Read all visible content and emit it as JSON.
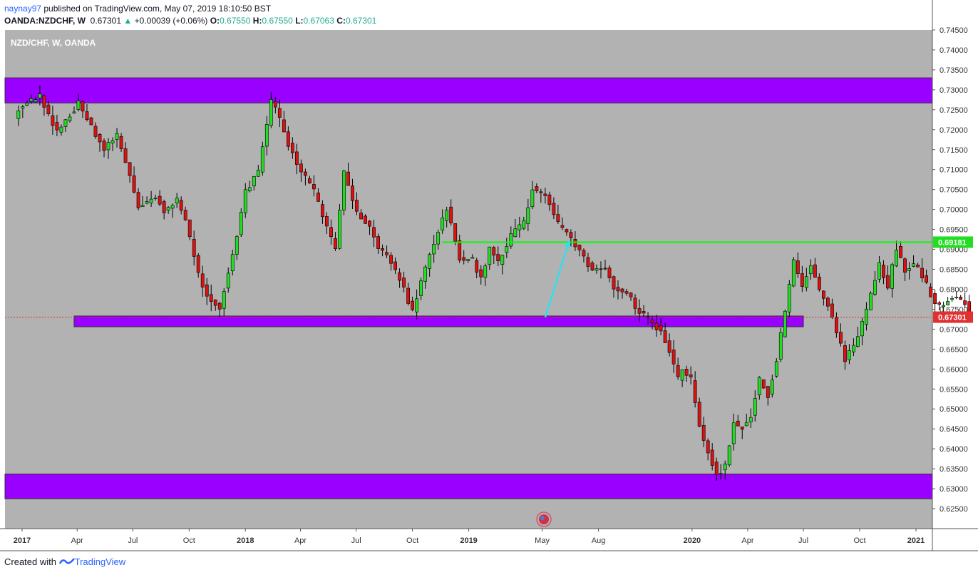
{
  "header": {
    "user": "naynay97",
    "published": " published on TradingView.com, May 07, 2019 18:10:50 BST",
    "symbol": "OANDA:NZDCHF, W",
    "last": "0.67301",
    "change_arrow": "▲",
    "change": "+0.00039 (+0.06%)",
    "o_label": "O:",
    "o": "0.67550",
    "h_label": "H:",
    "h": "0.67550",
    "l_label": "L:",
    "l": "0.67063",
    "c_label": "C:",
    "c": "0.67301"
  },
  "legend": "NZD/CHF, W, OANDA",
  "footer": {
    "created": "Created with",
    "brand": "TradingView"
  },
  "colors": {
    "bg": "#b2b2b2",
    "up": "#22dd22",
    "down": "#dd1111",
    "zone": "#9900ff",
    "target_line": "#00ff00",
    "arrow": "#33ddee",
    "price_tag": "#e03030",
    "target_tag": "#22dd22"
  },
  "chart_data": {
    "type": "candlestick",
    "symbol": "NZD/CHF",
    "timeframe": "W",
    "ylim": [
      0.62,
      0.745
    ],
    "y_ticks": [
      "0.62500",
      "0.63000",
      "0.63500",
      "0.64000",
      "0.64500",
      "0.65000",
      "0.65500",
      "0.66000",
      "0.66500",
      "0.67000",
      "0.67500",
      "0.68000",
      "0.68500",
      "0.69000",
      "0.69500",
      "0.70000",
      "0.70500",
      "0.71000",
      "0.71500",
      "0.72000",
      "0.72500",
      "0.73000",
      "0.73500",
      "0.74000",
      "0.74500"
    ],
    "x_ticks": [
      {
        "label": "2017",
        "date": "2017-01-01",
        "bold": true
      },
      {
        "label": "Apr",
        "date": "2017-04-01",
        "bold": false
      },
      {
        "label": "Jul",
        "date": "2017-07-01",
        "bold": false
      },
      {
        "label": "Oct",
        "date": "2017-10-01",
        "bold": false
      },
      {
        "label": "2018",
        "date": "2018-01-01",
        "bold": true
      },
      {
        "label": "Apr",
        "date": "2018-04-01",
        "bold": false
      },
      {
        "label": "Jul",
        "date": "2018-07-01",
        "bold": false
      },
      {
        "label": "Oct",
        "date": "2018-10-01",
        "bold": false
      },
      {
        "label": "2019",
        "date": "2019-01-01",
        "bold": true
      },
      {
        "label": "May",
        "date": "2019-05-01",
        "bold": false
      },
      {
        "label": "Aug",
        "date": "2019-08-01",
        "bold": false
      },
      {
        "label": "2020",
        "date": "2020-01-01",
        "bold": true
      },
      {
        "label": "Apr",
        "date": "2020-04-01",
        "bold": false
      },
      {
        "label": "Jul",
        "date": "2020-07-01",
        "bold": false
      },
      {
        "label": "Oct",
        "date": "2020-10-01",
        "bold": false
      },
      {
        "label": "2021",
        "date": "2021-01-01",
        "bold": true
      }
    ],
    "first_candle_date": "2016-12-26",
    "close_path": [
      [
        0,
        0.7255
      ],
      [
        5,
        0.7285
      ],
      [
        9,
        0.7195
      ],
      [
        14,
        0.7265
      ],
      [
        20,
        0.715
      ],
      [
        23,
        0.7185
      ],
      [
        26,
        0.7085
      ],
      [
        28,
        0.7005
      ],
      [
        32,
        0.7035
      ],
      [
        34,
        0.6995
      ],
      [
        37,
        0.7025
      ],
      [
        39,
        0.6975
      ],
      [
        42,
        0.6835
      ],
      [
        44,
        0.6785
      ],
      [
        47,
        0.6755
      ],
      [
        50,
        0.6885
      ],
      [
        53,
        0.7045
      ],
      [
        56,
        0.7095
      ],
      [
        59,
        0.7275
      ],
      [
        60,
        0.7255
      ],
      [
        63,
        0.7165
      ],
      [
        66,
        0.7095
      ],
      [
        69,
        0.7045
      ],
      [
        72,
        0.6955
      ],
      [
        74,
        0.6905
      ],
      [
        76,
        0.7095
      ],
      [
        79,
        0.6995
      ],
      [
        82,
        0.6955
      ],
      [
        84,
        0.6905
      ],
      [
        86,
        0.6885
      ],
      [
        89,
        0.6825
      ],
      [
        92,
        0.6745
      ],
      [
        95,
        0.6855
      ],
      [
        98,
        0.6945
      ],
      [
        100,
        0.7005
      ],
      [
        103,
        0.6875
      ],
      [
        106,
        0.6875
      ],
      [
        108,
        0.6825
      ],
      [
        110,
        0.6905
      ],
      [
        112,
        0.6865
      ],
      [
        115,
        0.6935
      ],
      [
        118,
        0.6965
      ],
      [
        120,
        0.7055
      ],
      [
        123,
        0.7035
      ],
      [
        126,
        0.6965
      ],
      [
        129,
        0.6925
      ],
      [
        131,
        0.6895
      ],
      [
        134,
        0.6845
      ],
      [
        137,
        0.6855
      ],
      [
        139,
        0.6805
      ],
      [
        142,
        0.6795
      ],
      [
        144,
        0.6755
      ],
      [
        146,
        0.6735
      ],
      [
        148,
        0.6715
      ],
      [
        150,
        0.6695
      ],
      [
        152,
        0.6645
      ],
      [
        154,
        0.6575
      ],
      [
        155,
        0.6595
      ],
      [
        157,
        0.6575
      ],
      [
        159,
        0.6455
      ],
      [
        161,
        0.6395
      ],
      [
        163,
        0.6335
      ],
      [
        165,
        0.6355
      ],
      [
        167,
        0.6465
      ],
      [
        169,
        0.6455
      ],
      [
        171,
        0.6485
      ],
      [
        173,
        0.6575
      ],
      [
        175,
        0.6535
      ],
      [
        177,
        0.6625
      ],
      [
        179,
        0.6745
      ],
      [
        181,
        0.6875
      ],
      [
        183,
        0.6805
      ],
      [
        185,
        0.6865
      ],
      [
        187,
        0.6795
      ],
      [
        189,
        0.6765
      ],
      [
        191,
        0.6695
      ],
      [
        193,
        0.6625
      ],
      [
        195,
        0.6655
      ],
      [
        197,
        0.6715
      ],
      [
        199,
        0.6785
      ],
      [
        201,
        0.6865
      ],
      [
        203,
        0.6805
      ],
      [
        205,
        0.6905
      ],
      [
        207,
        0.6845
      ],
      [
        209,
        0.6865
      ],
      [
        211,
        0.6835
      ],
      [
        213,
        0.6785
      ],
      [
        215,
        0.6755
      ],
      [
        217,
        0.6775
      ],
      [
        219,
        0.6785
      ],
      [
        221,
        0.6765
      ],
      [
        222,
        0.673
      ]
    ],
    "last_price": 0.67301,
    "target_price": 0.69181,
    "price_labels": {
      "last": "0.67301",
      "target": "0.69181"
    },
    "zones": [
      {
        "top": 0.733,
        "bottom": 0.7267,
        "from": "start",
        "to": "end"
      },
      {
        "top": 0.6733,
        "bottom": 0.6706,
        "from": "2017-03-27",
        "to": "2020-07-01"
      },
      {
        "top": 0.6337,
        "bottom": 0.6275,
        "from": "start",
        "to": "end"
      }
    ],
    "target_line": {
      "from": "2018-11-19",
      "to": "end",
      "price": 0.69181
    },
    "projection_arrow": {
      "from_date": "2019-05-06",
      "from_price": 0.673,
      "to_date": "2019-06-13",
      "to_price": 0.6915
    }
  }
}
